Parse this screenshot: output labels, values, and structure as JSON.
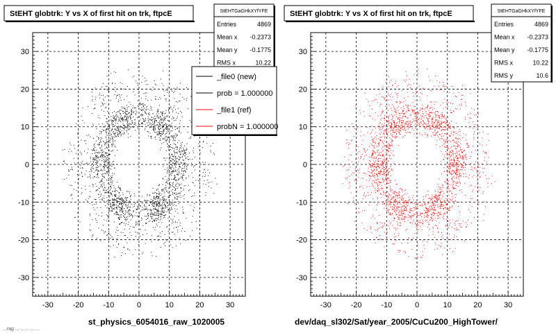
{
  "canvas": {
    "footer_text": "...rag ... ...... .......",
    "background": "#ffffff",
    "pad_background": "#ffffff"
  },
  "chart_data": [
    {
      "type": "scatter",
      "title": "StEHT globtrk: Y vs X of first hit on trk, ftpcE",
      "xlabel": "st_physics_6054016_raw_1020005",
      "ylabel": "",
      "xlim": [
        -35,
        35
      ],
      "ylim": [
        -35,
        35
      ],
      "x_ticks": [
        -30,
        -20,
        -10,
        0,
        10,
        20,
        30
      ],
      "y_ticks": [
        -30,
        -20,
        -10,
        0,
        10,
        20,
        30
      ],
      "grid": true,
      "marker_color": "#000000",
      "distribution": {
        "shape": "ring",
        "inner_radius": 8,
        "outer_radius": 24,
        "dense_band": [
          10,
          16
        ]
      },
      "stats": {
        "name": "StEHTGaGHkXYfYFE",
        "rows": [
          {
            "label": "Entries",
            "value": "4869"
          },
          {
            "label": "Mean x",
            "value": "-0.2373"
          },
          {
            "label": "Mean y",
            "value": "-0.1775"
          },
          {
            "label": "RMS x",
            "value": "10.22"
          }
        ]
      },
      "legend": {
        "placement": "top-right",
        "entries": [
          {
            "label": "_file0 (new)",
            "color": "#000000"
          },
          {
            "label": "prob = 1.000000",
            "color": "#000000"
          },
          {
            "label": "_file1 (ref)",
            "color": "#ff0000"
          },
          {
            "label": "probN = 1.000000",
            "color": "#ff0000"
          }
        ]
      }
    },
    {
      "type": "scatter",
      "title": "StEHT globtrk: Y vs X of first hit on trk, ftpcE",
      "xlabel": "dev/daq_sl302/Sat/year_2005/CuCu200_HighTower/",
      "ylabel": "",
      "xlim": [
        -35,
        35
      ],
      "ylim": [
        -35,
        35
      ],
      "x_ticks": [
        -30,
        -20,
        -10,
        0,
        10,
        20,
        30
      ],
      "y_ticks": [
        -30,
        -20,
        -10,
        0,
        10,
        20,
        30
      ],
      "grid": true,
      "marker_color": "#ff0000",
      "distribution": {
        "shape": "ring",
        "inner_radius": 8,
        "outer_radius": 24,
        "dense_band": [
          10,
          16
        ]
      },
      "stats": {
        "name": "StEHTGaGHkXYfYFE",
        "rows": [
          {
            "label": "Entries",
            "value": "4869"
          },
          {
            "label": "Mean x",
            "value": "-0.2373"
          },
          {
            "label": "Mean y",
            "value": "-0.1775"
          },
          {
            "label": "RMS x",
            "value": "10.22"
          },
          {
            "label": "RMS y",
            "value": "10.6"
          }
        ]
      }
    }
  ]
}
